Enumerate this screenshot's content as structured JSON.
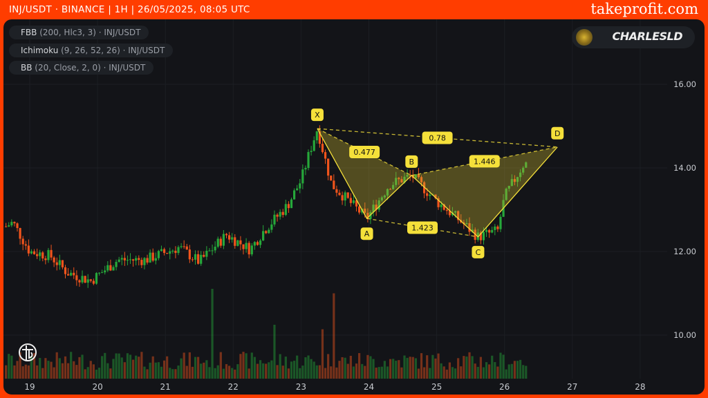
{
  "header": {
    "title": "INJ/USDT · BINANCE | 1H | 26/05/2025, 08:05 UTC",
    "brand": "takeprofit.com"
  },
  "indicators": [
    {
      "name": "FBB",
      "params": "(200, Hlc3, 3) · INJ/USDT"
    },
    {
      "name": "Ichimoku",
      "params": "(9, 26, 52, 26) · INJ/USDT"
    },
    {
      "name": "BB",
      "params": "(20, Close, 2, 0) · INJ/USDT"
    }
  ],
  "author": {
    "name": "CHARLESLD"
  },
  "colors": {
    "frame": "#ff3d00",
    "background": "#131418",
    "up": "#26a83a",
    "down": "#f0541c",
    "pattern": "#f5e03a",
    "pattern_fill": "rgba(200,180,50,0.35)"
  },
  "chart_data": {
    "type": "candlestick",
    "yaxis": {
      "ticks": [
        "16.00",
        "14.00",
        "12.00",
        "10.00"
      ],
      "values": [
        16,
        14,
        12,
        10
      ],
      "position": "right"
    },
    "xaxis": {
      "ticks": [
        "19",
        "20",
        "21",
        "22",
        "23",
        "24",
        "25",
        "26",
        "27",
        "28"
      ],
      "values": [
        19,
        20,
        21,
        22,
        23,
        24,
        25,
        26,
        27,
        28
      ]
    },
    "grid": true,
    "price_path": [
      [
        18.65,
        12.6
      ],
      [
        18.75,
        12.7
      ],
      [
        19.0,
        12.0
      ],
      [
        19.3,
        11.9
      ],
      [
        19.55,
        11.5
      ],
      [
        19.9,
        11.3
      ],
      [
        20.3,
        11.8
      ],
      [
        20.7,
        11.8
      ],
      [
        21.2,
        12.1
      ],
      [
        21.5,
        11.75
      ],
      [
        21.9,
        12.4
      ],
      [
        22.25,
        12.05
      ],
      [
        22.45,
        12.5
      ],
      [
        22.8,
        13.1
      ],
      [
        23.0,
        13.7
      ],
      [
        23.15,
        14.5
      ],
      [
        23.24,
        14.94
      ],
      [
        23.45,
        13.6
      ],
      [
        23.97,
        12.79
      ],
      [
        24.3,
        13.6
      ],
      [
        24.63,
        13.82
      ],
      [
        25.0,
        13.2
      ],
      [
        25.3,
        12.8
      ],
      [
        25.61,
        12.35
      ],
      [
        25.9,
        12.5
      ],
      [
        26.0,
        13.3
      ],
      [
        26.3,
        14.15
      ],
      [
        26.35,
        14.0
      ]
    ],
    "volume_spikes": [
      [
        21.7,
        1.0
      ],
      [
        23.5,
        0.95
      ],
      [
        22.6,
        0.6
      ],
      [
        23.3,
        0.55
      ]
    ],
    "pattern": {
      "points": [
        {
          "label": "X",
          "day": 23.24,
          "price": 14.94
        },
        {
          "label": "A",
          "day": 23.97,
          "price": 12.79
        },
        {
          "label": "B",
          "day": 24.63,
          "price": 13.82
        },
        {
          "label": "C",
          "day": 25.61,
          "price": 12.35
        },
        {
          "label": "D",
          "day": 26.78,
          "price": 14.5
        }
      ],
      "ratios": [
        {
          "from": "X",
          "to": "B",
          "label": "0.477"
        },
        {
          "from": "X",
          "to": "D",
          "label": "0.78"
        },
        {
          "from": "B",
          "to": "D",
          "label": "1.446"
        },
        {
          "from": "A",
          "to": "C",
          "label": "1.423"
        }
      ]
    }
  }
}
